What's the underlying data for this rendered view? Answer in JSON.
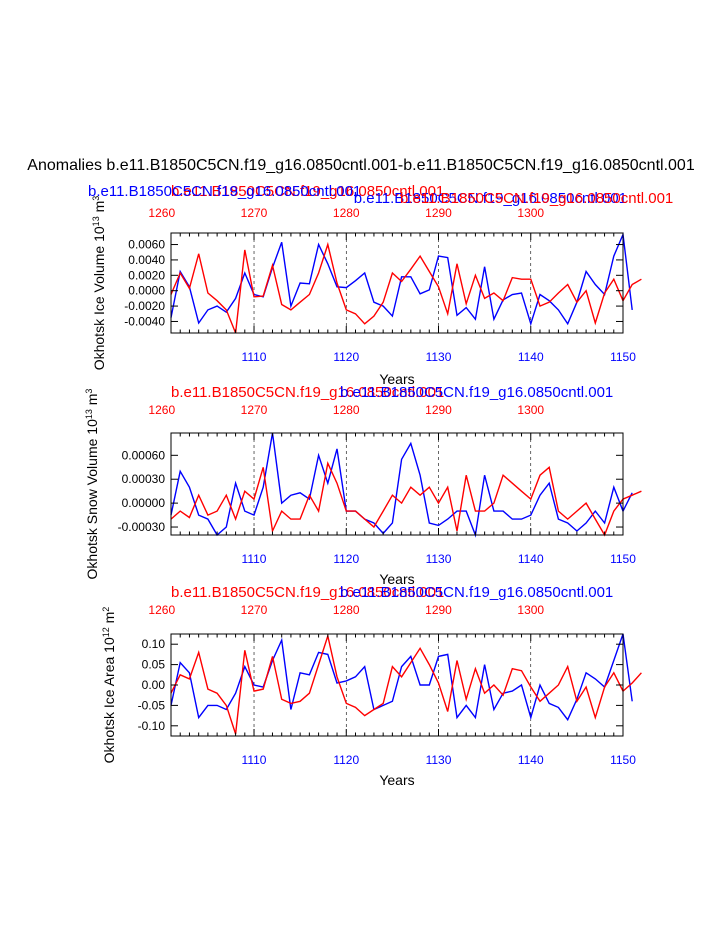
{
  "main_title": "Anomalies b.e11.B1850C5CN.f19_g16.0850cntl.001-b.e11.B1850C5CN.f19_g16.0850cntl.001",
  "colors": {
    "series_a": "#0000ff",
    "series_b": "#ff0000",
    "axes": "#000000"
  },
  "chart_data": [
    {
      "type": "line",
      "ylabel": "Okhotsk Ice Volume 10",
      "ylabel_sup": "13",
      "ylabel_unit": "m",
      "ylabel_unit_sup": "3",
      "xlabel": "Years",
      "top_labels": [
        {
          "text": "b.e11.B1850C5CN.f19_g16.0850cntl.001",
          "color": "red"
        },
        {
          "text": "b.e11.B1850C5CN.f19_g16.0850cntl.001",
          "color": "blue"
        },
        {
          "text": "b.e11.B1850C5CN.f19_g16.0850cntl.001",
          "color": "blue"
        },
        {
          "text": "b.e11.B1850C5CN.f19_g16.0850cntl.001",
          "color": "red"
        }
      ],
      "ylim": [
        -0.0055,
        0.0075
      ],
      "yticks": [
        -0.004,
        -0.002,
        0.0,
        0.002,
        0.004,
        0.006
      ],
      "ytick_labels": [
        "-0.0040",
        "-0.0020",
        "0.0000",
        "0.0020",
        "0.0040",
        "0.0060"
      ],
      "series": [
        {
          "name": "blue",
          "color": "#0000ff",
          "x_start": 1101,
          "values": [
            -0.0035,
            0.0025,
            0.0005,
            -0.0042,
            -0.0025,
            -0.002,
            -0.0028,
            -0.001,
            0.0023,
            -0.0005,
            -0.0008,
            0.003,
            0.0063,
            -0.002,
            0.001,
            0.0009,
            0.006,
            0.0035,
            0.0005,
            0.0004,
            0.0013,
            0.0023,
            -0.0015,
            -0.002,
            -0.0033,
            0.0018,
            0.0018,
            -0.0004,
            0.0001,
            0.0045,
            0.0043,
            -0.0032,
            -0.0022,
            -0.0037,
            0.0031,
            -0.0037,
            -0.0012,
            -0.0005,
            -0.0003,
            -0.0043,
            -0.0005,
            -0.0013,
            -0.0025,
            -0.0043,
            -0.0015,
            0.0025,
            0.0008,
            -0.0005,
            0.0045,
            0.0073,
            -0.0025
          ]
        },
        {
          "name": "red",
          "color": "#ff0000",
          "x_start": 1261,
          "values": [
            -0.0005,
            0.0023,
            0.0003,
            0.0048,
            -0.0003,
            -0.0013,
            -0.0025,
            -0.0055,
            0.0053,
            -0.0008,
            -0.0007,
            0.0033,
            -0.0018,
            -0.0025,
            -0.0015,
            -0.0005,
            0.0023,
            0.006,
            0.001,
            -0.0025,
            -0.003,
            -0.0043,
            -0.0033,
            -0.0015,
            0.0023,
            0.0012,
            0.0028,
            0.0045,
            0.0025,
            0.0005,
            -0.003,
            0.0035,
            -0.0017,
            0.002,
            -0.001,
            -0.0003,
            -0.0013,
            0.0017,
            0.0015,
            0.0015,
            -0.002,
            -0.0015,
            -0.0003,
            0.0008,
            -0.0015,
            0.0,
            -0.0042,
            -0.0003,
            0.0015,
            -0.0013,
            0.0008,
            0.0015
          ]
        }
      ]
    },
    {
      "type": "line",
      "ylabel": "Okhotsk Snow Volume 10",
      "ylabel_sup": "13",
      "ylabel_unit": "m",
      "ylabel_unit_sup": "3",
      "xlabel": "Years",
      "top_labels": [
        {
          "text": "b.e11.B1850C5CN.f19_g16.0850cntl.001",
          "color": "red"
        },
        {
          "text": "b.e11.B1850C5CN.f19_g16.0850cntl.001",
          "color": "blue"
        }
      ],
      "ylim": [
        -0.0004,
        0.00088
      ],
      "yticks": [
        -0.0003,
        0.0,
        0.0003,
        0.0006
      ],
      "ytick_labels": [
        "-0.00030",
        "0.00000",
        "0.00030",
        "0.00060"
      ],
      "series": [
        {
          "name": "blue",
          "color": "#0000ff",
          "x_start": 1101,
          "values": [
            -0.00015,
            0.0004,
            0.0002,
            -0.00015,
            -0.0002,
            -0.0004,
            -0.0003,
            0.00025,
            -0.0001,
            -0.00015,
            0.0002,
            0.00088,
            0.0,
            0.0001,
            0.00013,
            5e-05,
            0.0006,
            0.00025,
            0.00068,
            -0.0001,
            -0.0001,
            -0.0002,
            -0.00025,
            -0.00038,
            -0.00025,
            0.00055,
            0.00075,
            0.00035,
            -0.00025,
            -0.00028,
            -0.0002,
            -0.0001,
            -0.0001,
            -0.0004,
            0.00035,
            -0.0001,
            -0.0001,
            -0.0002,
            -0.0002,
            -0.00015,
            0.0001,
            0.00025,
            -0.0002,
            -0.00025,
            -0.00035,
            -0.00025,
            -0.0001,
            -0.00025,
            0.0002,
            -0.0001,
            0.00013
          ]
        },
        {
          "name": "red",
          "color": "#ff0000",
          "x_start": 1261,
          "values": [
            -0.0002,
            -0.0001,
            -0.00018,
            0.0001,
            -0.00015,
            -0.0001,
            0.0001,
            -0.0002,
            0.00015,
            5e-05,
            0.00045,
            -0.00035,
            -0.0001,
            -0.0002,
            -0.0002,
            0.0001,
            -0.0001,
            0.0005,
            0.00025,
            -0.0001,
            -0.0001,
            -0.0002,
            -0.0003,
            -0.0001,
            0.0001,
            0.0,
            0.0002,
            0.0001,
            0.0002,
            0.0,
            0.0002,
            -0.00035,
            0.00035,
            -0.0001,
            -0.0001,
            0.0,
            0.00035,
            0.00025,
            0.00015,
            5e-05,
            0.00035,
            0.00045,
            -0.0001,
            -0.0002,
            -0.0001,
            0.0,
            -0.0002,
            -0.0004,
            -0.0001,
            5e-05,
            0.0001,
            0.00015
          ]
        }
      ]
    },
    {
      "type": "line",
      "ylabel": "Okhotsk Ice Area 10",
      "ylabel_sup": "12",
      "ylabel_unit": "m",
      "ylabel_unit_sup": "2",
      "xlabel": "Years",
      "top_labels": [
        {
          "text": "b.e11.B1850C5CN.f19_g16.0850cntl.001",
          "color": "red"
        },
        {
          "text": "b.e11.B1850C5CN.f19_g16.0850cntl.001",
          "color": "blue"
        }
      ],
      "ylim": [
        -0.125,
        0.125
      ],
      "yticks": [
        -0.1,
        -0.05,
        0.0,
        0.05,
        0.1
      ],
      "ytick_labels": [
        "-0.10",
        "-0.05",
        "0.00",
        "0.05",
        "0.10"
      ],
      "series": [
        {
          "name": "blue",
          "color": "#0000ff",
          "x_start": 1101,
          "values": [
            -0.05,
            0.055,
            0.03,
            -0.08,
            -0.05,
            -0.05,
            -0.06,
            -0.02,
            0.045,
            0.0,
            -0.005,
            0.06,
            0.11,
            -0.06,
            0.03,
            0.025,
            0.08,
            0.075,
            0.005,
            0.01,
            0.02,
            0.045,
            -0.06,
            -0.05,
            -0.04,
            0.045,
            0.07,
            0.0,
            0.0,
            0.07,
            0.075,
            -0.08,
            -0.05,
            -0.08,
            0.05,
            -0.06,
            -0.02,
            -0.015,
            0.0,
            -0.08,
            0.0,
            -0.045,
            -0.055,
            -0.085,
            -0.035,
            0.03,
            0.015,
            -0.005,
            0.06,
            0.125,
            -0.04
          ]
        },
        {
          "name": "red",
          "color": "#ff0000",
          "x_start": 1261,
          "values": [
            -0.02,
            0.025,
            0.015,
            0.08,
            -0.01,
            -0.02,
            -0.05,
            -0.12,
            0.085,
            -0.015,
            -0.01,
            0.07,
            -0.035,
            -0.045,
            -0.04,
            -0.02,
            0.05,
            0.12,
            0.02,
            -0.045,
            -0.055,
            -0.075,
            -0.06,
            -0.045,
            0.045,
            0.02,
            0.055,
            0.09,
            0.05,
            0.005,
            -0.065,
            0.06,
            -0.035,
            0.04,
            -0.02,
            0.0,
            -0.025,
            0.04,
            0.035,
            -0.005,
            -0.04,
            -0.02,
            0.0,
            0.045,
            -0.04,
            -0.005,
            -0.08,
            -0.005,
            0.03,
            -0.015,
            0.005,
            0.03
          ]
        }
      ]
    }
  ],
  "x_axis_bottom": {
    "min": 1101,
    "max": 1150,
    "ticks": [
      1110,
      1120,
      1130,
      1140,
      1150
    ],
    "labels": [
      "1110",
      "1120",
      "1130",
      "1140",
      "1150"
    ]
  },
  "x_axis_top": {
    "min": 1261,
    "max": 1310,
    "ticks": [
      1260,
      1270,
      1280,
      1290,
      1300
    ],
    "labels": [
      "1260",
      "1270",
      "1280",
      "1290",
      "1300"
    ]
  }
}
